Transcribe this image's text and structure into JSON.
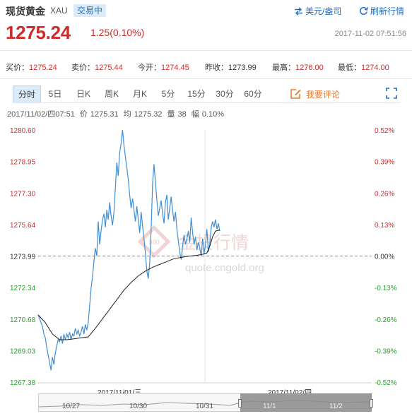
{
  "header": {
    "title": "现货黄金",
    "symbol": "XAU",
    "status": "交易中",
    "currency_link": "美元/盎司",
    "refresh_link": "刷新行情"
  },
  "price": {
    "last": "1275.24",
    "change": "1.25(0.10%)",
    "timestamp": "2017-11-02 07:51:56"
  },
  "quote": {
    "bid_label": "买价：",
    "bid": "1275.24",
    "ask_label": "卖价：",
    "ask": "1275.44",
    "open_label": "今开：",
    "open": "1274.45",
    "prev_close_label": "昨收：",
    "prev_close": "1273.99",
    "high_label": "最高：",
    "high": "1276.00",
    "low_label": "最低：",
    "low": "1274.00"
  },
  "tabs": [
    "分时",
    "5日",
    "日K",
    "周K",
    "月K",
    "5分",
    "15分",
    "30分",
    "60分"
  ],
  "active_tab": "分时",
  "comment_label": "我要评论",
  "info_bar": {
    "datetime": "2017/11/02/四07:51",
    "price_label": "价",
    "price": "1275.31",
    "avg_label": "均",
    "avg": "1275.32",
    "volume_label": "量",
    "volume": "38",
    "amplitude_label": "幅",
    "amplitude": "0.10%"
  },
  "watermark": {
    "text": "金投行情",
    "url": "quote.cngold.org"
  },
  "navigator": {
    "labels": [
      "2017/11/01/三",
      "2017/11/02/四"
    ],
    "dates": [
      "10/27",
      "10/30",
      "10/31",
      "11/1",
      "11/2"
    ]
  },
  "colors": {
    "up": "#d12a2a",
    "down": "#2ea12e",
    "price_line": "#3f8ed4",
    "avg_line": "#222222",
    "accent": "#1f6fc4",
    "comment": "#e8762b"
  },
  "chart_data": {
    "type": "line",
    "title": "",
    "y_ticks_left": [
      "1280.60",
      "1278.95",
      "1277.30",
      "1275.64",
      "1273.99",
      "1272.34",
      "1270.68",
      "1269.03",
      "1267.38"
    ],
    "y_ticks_right": [
      "0.52%",
      "0.39%",
      "0.26%",
      "0.13%",
      "0.00%",
      "-0.13%",
      "-0.26%",
      "-0.39%",
      "-0.52%"
    ],
    "ylim": [
      1267.38,
      1280.6
    ],
    "baseline": 1273.99,
    "x_session_labels": [
      "2017/11/01/三",
      "2017/11/02/四"
    ],
    "series": [
      {
        "role": "price",
        "values": [
          [
            0,
            1270.9
          ],
          [
            2,
            1270.7
          ],
          [
            4,
            1270.5
          ],
          [
            6,
            1270.3
          ],
          [
            8,
            1269.9
          ],
          [
            10,
            1269.7
          ],
          [
            12,
            1269.2
          ],
          [
            14,
            1268.8
          ],
          [
            16,
            1268.4
          ],
          [
            18,
            1268.0
          ],
          [
            20,
            1268.7
          ],
          [
            22,
            1268.3
          ],
          [
            24,
            1268.9
          ],
          [
            26,
            1269.3
          ],
          [
            28,
            1269.6
          ],
          [
            30,
            1269.5
          ],
          [
            32,
            1269.8
          ],
          [
            34,
            1269.4
          ],
          [
            36,
            1269.9
          ],
          [
            38,
            1269.6
          ],
          [
            40,
            1269.9
          ],
          [
            42,
            1269.7
          ],
          [
            44,
            1270.0
          ],
          [
            46,
            1269.6
          ],
          [
            48,
            1269.9
          ],
          [
            50,
            1269.8
          ],
          [
            52,
            1270.2
          ],
          [
            54,
            1269.9
          ],
          [
            56,
            1270.1
          ],
          [
            58,
            1269.8
          ],
          [
            60,
            1270.0
          ],
          [
            62,
            1270.3
          ],
          [
            64,
            1269.9
          ],
          [
            66,
            1270.4
          ],
          [
            68,
            1270.1
          ],
          [
            70,
            1270.5
          ],
          [
            72,
            1271.4
          ],
          [
            74,
            1272.3
          ],
          [
            76,
            1272.9
          ],
          [
            78,
            1273.7
          ],
          [
            80,
            1274.4
          ],
          [
            82,
            1274.0
          ],
          [
            84,
            1275.8
          ],
          [
            86,
            1274.6
          ],
          [
            88,
            1275.3
          ],
          [
            90,
            1275.9
          ],
          [
            92,
            1276.2
          ],
          [
            94,
            1275.5
          ],
          [
            96,
            1276.4
          ],
          [
            98,
            1275.9
          ],
          [
            100,
            1276.8
          ],
          [
            102,
            1276.1
          ],
          [
            104,
            1275.6
          ],
          [
            106,
            1276.3
          ],
          [
            108,
            1277.6
          ],
          [
            110,
            1278.9
          ],
          [
            112,
            1278.2
          ],
          [
            114,
            1279.4
          ],
          [
            116,
            1279.9
          ],
          [
            118,
            1280.6
          ],
          [
            120,
            1279.8
          ],
          [
            122,
            1279.2
          ],
          [
            124,
            1278.6
          ],
          [
            126,
            1278.0
          ],
          [
            128,
            1277.2
          ],
          [
            130,
            1276.5
          ],
          [
            132,
            1277.0
          ],
          [
            134,
            1276.4
          ],
          [
            136,
            1275.8
          ],
          [
            138,
            1276.6
          ],
          [
            140,
            1275.9
          ],
          [
            142,
            1275.2
          ],
          [
            144,
            1276.3
          ],
          [
            146,
            1275.6
          ],
          [
            148,
            1274.9
          ],
          [
            150,
            1274.1
          ],
          [
            152,
            1273.2
          ],
          [
            154,
            1272.8
          ],
          [
            156,
            1273.6
          ],
          [
            158,
            1275.4
          ],
          [
            160,
            1277.8
          ],
          [
            162,
            1278.8
          ],
          [
            164,
            1277.9
          ],
          [
            166,
            1276.9
          ],
          [
            168,
            1276.1
          ],
          [
            170,
            1276.5
          ],
          [
            172,
            1276.9
          ],
          [
            174,
            1276.2
          ],
          [
            176,
            1275.7
          ],
          [
            178,
            1276.8
          ],
          [
            180,
            1277.2
          ],
          [
            182,
            1275.9
          ],
          [
            184,
            1276.5
          ],
          [
            186,
            1277.1
          ],
          [
            188,
            1276.4
          ],
          [
            190,
            1275.8
          ],
          [
            192,
            1276.3
          ],
          [
            194,
            1275.4
          ],
          [
            196,
            1274.8
          ],
          [
            198,
            1274.2
          ],
          [
            200,
            1273.8
          ],
          [
            202,
            1274.5
          ],
          [
            204,
            1275.1
          ],
          [
            206,
            1274.6
          ],
          [
            208,
            1274.9
          ],
          [
            210,
            1275.3
          ],
          [
            212,
            1274.7
          ],
          [
            214,
            1276.0
          ],
          [
            216,
            1275.2
          ],
          [
            218,
            1274.6
          ],
          [
            220,
            1275.0
          ],
          [
            222,
            1274.3
          ],
          [
            224,
            1274.7
          ],
          [
            226,
            1274.4
          ],
          [
            228,
            1274.0
          ],
          [
            230,
            1274.9
          ],
          [
            232,
            1274.1
          ],
          [
            234,
            1274.6
          ],
          [
            236,
            1275.4
          ],
          [
            238,
            1274.2
          ],
          [
            240,
            1274.6
          ],
          [
            242,
            1275.5
          ],
          [
            244,
            1275.8
          ],
          [
            246,
            1275.5
          ],
          [
            248,
            1275.9
          ],
          [
            250,
            1275.4
          ],
          [
            252,
            1275.7
          ],
          [
            254,
            1275.3
          ]
        ]
      },
      {
        "role": "average",
        "values": [
          [
            0,
            1270.9
          ],
          [
            10,
            1270.5
          ],
          [
            20,
            1269.9
          ],
          [
            30,
            1269.6
          ],
          [
            40,
            1269.6
          ],
          [
            50,
            1269.65
          ],
          [
            60,
            1269.7
          ],
          [
            70,
            1269.75
          ],
          [
            80,
            1270.2
          ],
          [
            90,
            1270.7
          ],
          [
            100,
            1271.2
          ],
          [
            110,
            1271.7
          ],
          [
            120,
            1272.2
          ],
          [
            130,
            1272.6
          ],
          [
            140,
            1272.95
          ],
          [
            150,
            1273.2
          ],
          [
            160,
            1273.4
          ],
          [
            170,
            1273.55
          ],
          [
            180,
            1273.7
          ],
          [
            190,
            1273.85
          ],
          [
            200,
            1273.92
          ],
          [
            210,
            1273.98
          ],
          [
            220,
            1274.02
          ],
          [
            230,
            1274.08
          ],
          [
            236,
            1274.15
          ],
          [
            240,
            1274.5
          ],
          [
            244,
            1275.0
          ],
          [
            248,
            1275.3
          ],
          [
            254,
            1275.35
          ]
        ]
      }
    ]
  }
}
